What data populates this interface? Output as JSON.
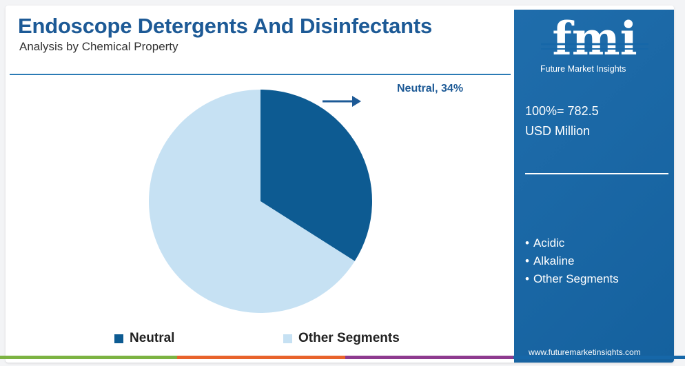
{
  "header": {
    "title": "Endoscope Detergents And Disinfectants",
    "subtitle": "Analysis by Chemical Property"
  },
  "chart_data": {
    "type": "pie",
    "slices": [
      {
        "label": "Neutral",
        "value": 34,
        "color": "#0d5b92"
      },
      {
        "label": "Other Segments",
        "value": 66,
        "color": "#c6e1f3"
      }
    ],
    "callout": "Neutral, 34%",
    "legend": [
      "Neutral",
      "Other Segments"
    ],
    "legend_position": "bottom"
  },
  "panel": {
    "logo_text": "fmi",
    "logo_tagline": "Future Market Insights",
    "total_line1": "100%= 782.5",
    "total_line2": "USD Million",
    "segments": [
      "Acidic",
      "Alkaline",
      "Other Segments"
    ],
    "website": "www.futuremarketinsights.com"
  },
  "colors": {
    "title": "#1d5a96",
    "panel_bg": "#1667a8",
    "bottom_bar": [
      "#7cb342",
      "#e8632b",
      "#8e3b8f",
      "#1667a8"
    ]
  }
}
